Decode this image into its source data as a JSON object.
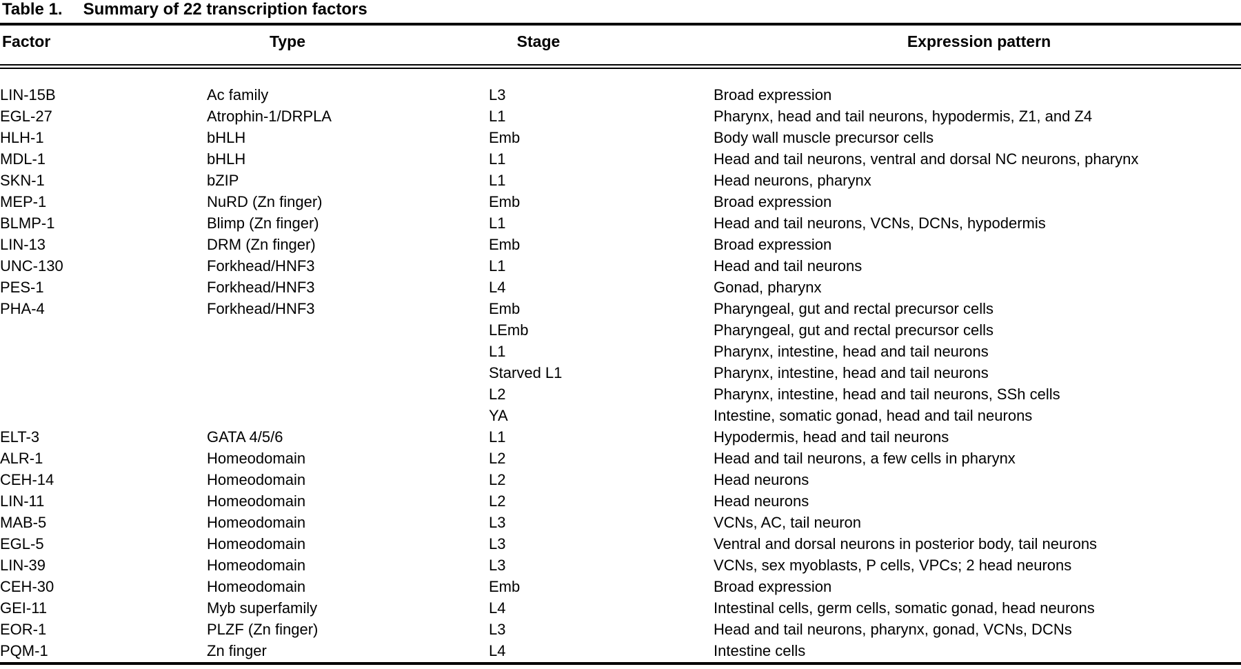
{
  "page": {
    "background": "#ffffff",
    "text_color": "#000000"
  },
  "table": {
    "title_label": "Table 1.",
    "title": "Summary of 22 transcription factors",
    "columns": [
      {
        "key": "factor",
        "label": "Factor"
      },
      {
        "key": "type",
        "label": "Type"
      },
      {
        "key": "stage",
        "label": "Stage"
      },
      {
        "key": "expression",
        "label": "Expression pattern"
      }
    ],
    "rows": [
      {
        "factor": "LIN-15B",
        "type": "Ac family",
        "stage": "L3",
        "expression": "Broad expression"
      },
      {
        "factor": "EGL-27",
        "type": "Atrophin-1/DRPLA",
        "stage": "L1",
        "expression": "Pharynx, head and tail neurons, hypodermis, Z1, and Z4"
      },
      {
        "factor": "HLH-1",
        "type": "bHLH",
        "stage": "Emb",
        "expression": "Body wall muscle precursor cells"
      },
      {
        "factor": "MDL-1",
        "type": "bHLH",
        "stage": "L1",
        "expression": "Head and tail neurons, ventral and dorsal NC neurons, pharynx"
      },
      {
        "factor": "SKN-1",
        "type": "bZIP",
        "stage": "L1",
        "expression": "Head neurons, pharynx"
      },
      {
        "factor": "MEP-1",
        "type": "NuRD (Zn finger)",
        "stage": "Emb",
        "expression": "Broad expression"
      },
      {
        "factor": "BLMP-1",
        "type": "Blimp (Zn finger)",
        "stage": "L1",
        "expression": "Head and tail neurons, VCNs, DCNs, hypodermis"
      },
      {
        "factor": "LIN-13",
        "type": "DRM (Zn finger)",
        "stage": "Emb",
        "expression": "Broad expression"
      },
      {
        "factor": "UNC-130",
        "type": "Forkhead/HNF3",
        "stage": "L1",
        "expression": "Head and tail neurons"
      },
      {
        "factor": "PES-1",
        "type": "Forkhead/HNF3",
        "stage": "L4",
        "expression": "Gonad, pharynx"
      },
      {
        "factor": "PHA-4",
        "type": "Forkhead/HNF3",
        "stage": "Emb",
        "expression": "Pharyngeal, gut and rectal precursor cells"
      },
      {
        "factor": "",
        "type": "",
        "stage": "LEmb",
        "expression": "Pharyngeal, gut and rectal precursor cells"
      },
      {
        "factor": "",
        "type": "",
        "stage": "L1",
        "expression": "Pharynx, intestine, head and tail neurons"
      },
      {
        "factor": "",
        "type": "",
        "stage": "Starved L1",
        "expression": "Pharynx, intestine, head and tail neurons"
      },
      {
        "factor": "",
        "type": "",
        "stage": "L2",
        "expression": "Pharynx, intestine, head and tail neurons, SSh cells"
      },
      {
        "factor": "",
        "type": "",
        "stage": "YA",
        "expression": "Intestine, somatic gonad, head and tail neurons"
      },
      {
        "factor": "ELT-3",
        "type": "GATA 4/5/6",
        "stage": "L1",
        "expression": "Hypodermis, head and tail neurons"
      },
      {
        "factor": "ALR-1",
        "type": "Homeodomain",
        "stage": "L2",
        "expression": "Head and tail neurons, a few cells in pharynx"
      },
      {
        "factor": "CEH-14",
        "type": "Homeodomain",
        "stage": "L2",
        "expression": "Head neurons"
      },
      {
        "factor": "LIN-11",
        "type": "Homeodomain",
        "stage": "L2",
        "expression": "Head neurons"
      },
      {
        "factor": "MAB-5",
        "type": "Homeodomain",
        "stage": "L3",
        "expression": "VCNs, AC, tail neuron"
      },
      {
        "factor": "EGL-5",
        "type": "Homeodomain",
        "stage": "L3",
        "expression": "Ventral and dorsal neurons in posterior body, tail neurons"
      },
      {
        "factor": "LIN-39",
        "type": "Homeodomain",
        "stage": "L3",
        "expression": "VCNs, sex myoblasts, P cells, VPCs; 2 head neurons"
      },
      {
        "factor": "CEH-30",
        "type": "Homeodomain",
        "stage": "Emb",
        "expression": "Broad expression"
      },
      {
        "factor": "GEI-11",
        "type": "Myb superfamily",
        "stage": "L4",
        "expression": "Intestinal cells, germ cells, somatic gonad, head neurons"
      },
      {
        "factor": "EOR-1",
        "type": "PLZF (Zn finger)",
        "stage": "L3",
        "expression": "Head and tail neurons, pharynx, gonad, VCNs, DCNs"
      },
      {
        "factor": "PQM-1",
        "type": "Zn finger",
        "stage": "L4",
        "expression": "Intestine cells"
      }
    ]
  }
}
